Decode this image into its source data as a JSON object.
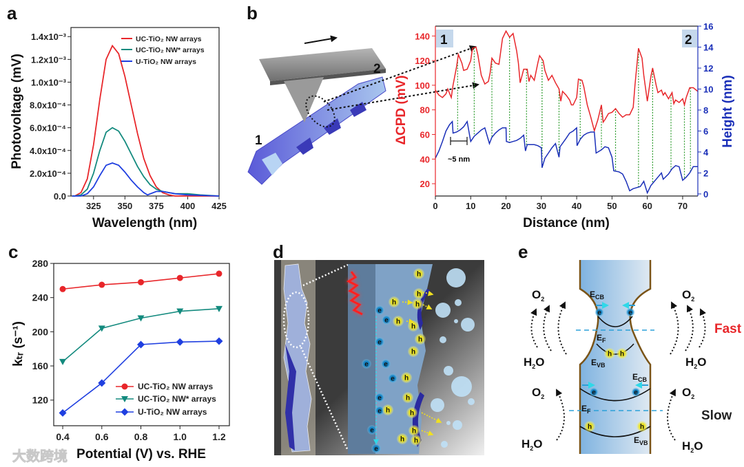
{
  "panels": {
    "a": "a",
    "b": "b",
    "c": "c",
    "d": "d",
    "e": "e"
  },
  "watermark": "大数跨境",
  "chart_data": [
    {
      "id": "a",
      "type": "line",
      "xlabel": "Wavelength (nm)",
      "ylabel": "Photovoltage (mV)",
      "xlim": [
        307,
        425
      ],
      "ylim": [
        0,
        0.00148
      ],
      "xticks": [
        325,
        350,
        375,
        400,
        425
      ],
      "yticks": [
        0,
        0.0002,
        0.0004,
        0.0006,
        0.0008,
        0.001,
        0.0012,
        0.0014
      ],
      "ytick_labels": [
        "0.0",
        "2.0x10⁻⁴",
        "4.0x10⁻⁴",
        "6.0x10⁻⁴",
        "8.0x10⁻⁴",
        "1.0x10⁻³",
        "1.2x10⁻³",
        "1.4x10⁻³"
      ],
      "legend": "top-right",
      "series": [
        {
          "name": "UC-TiO₂ NW arrays",
          "color": "#e8262a",
          "points": [
            [
              308,
              0
            ],
            [
              310,
              0
            ],
            [
              315,
              3e-05
            ],
            [
              320,
              0.00015
            ],
            [
              325,
              0.00045
            ],
            [
              330,
              0.00085
            ],
            [
              335,
              0.0012
            ],
            [
              340,
              0.00132
            ],
            [
              345,
              0.00125
            ],
            [
              350,
              0.00105
            ],
            [
              355,
              0.0008
            ],
            [
              360,
              0.00055
            ],
            [
              365,
              0.00033
            ],
            [
              370,
              0.00018
            ],
            [
              375,
              8e-05
            ],
            [
              380,
              3e-05
            ],
            [
              385,
              1e-05
            ],
            [
              390,
              0
            ],
            [
              400,
              0
            ],
            [
              425,
              0
            ]
          ]
        },
        {
          "name": "UC-TiO₂ NW* arrays",
          "color": "#138a7e",
          "points": [
            [
              308,
              0
            ],
            [
              310,
              0
            ],
            [
              315,
              1e-05
            ],
            [
              320,
              6e-05
            ],
            [
              325,
              0.0002
            ],
            [
              330,
              0.0004
            ],
            [
              335,
              0.00056
            ],
            [
              340,
              0.0006
            ],
            [
              345,
              0.00057
            ],
            [
              350,
              0.00048
            ],
            [
              355,
              0.00037
            ],
            [
              360,
              0.00026
            ],
            [
              365,
              0.00017
            ],
            [
              370,
              0.0001
            ],
            [
              375,
              6e-05
            ],
            [
              380,
              4e-05
            ],
            [
              385,
              3e-05
            ],
            [
              390,
              2e-05
            ],
            [
              400,
              2e-05
            ],
            [
              410,
              1e-05
            ],
            [
              425,
              0
            ]
          ]
        },
        {
          "name": "U-TiO₂ NW arrays",
          "color": "#1f3fe0",
          "points": [
            [
              308,
              0
            ],
            [
              315,
              0
            ],
            [
              320,
              2e-05
            ],
            [
              325,
              8e-05
            ],
            [
              330,
              0.00018
            ],
            [
              335,
              0.00027
            ],
            [
              340,
              0.00029
            ],
            [
              345,
              0.00027
            ],
            [
              350,
              0.00021
            ],
            [
              355,
              0.00014
            ],
            [
              360,
              8e-05
            ],
            [
              365,
              3e-05
            ],
            [
              368,
              1e-05
            ],
            [
              375,
              4e-05
            ],
            [
              380,
              4e-05
            ],
            [
              390,
              2e-05
            ],
            [
              400,
              1e-05
            ],
            [
              425,
              0
            ]
          ]
        }
      ]
    },
    {
      "id": "b",
      "type": "line",
      "xlabel": "Distance (nm)",
      "ylabel": "ΔCPD (mV)",
      "y2label": "Height (nm)",
      "xlim": [
        0,
        74.3
      ],
      "ylim": [
        10,
        148
      ],
      "y2lim": [
        -0.2,
        16
      ],
      "xticks": [
        0,
        10,
        20,
        30,
        40,
        50,
        60,
        70
      ],
      "yticks": [
        20,
        40,
        60,
        80,
        100,
        120,
        140
      ],
      "y2ticks": [
        0,
        2,
        4,
        6,
        8,
        10,
        12,
        14,
        16
      ],
      "corner_labels": [
        "1",
        "2"
      ],
      "scale_label": "~5 nm",
      "marker_x": [
        6.3,
        11,
        16,
        21,
        25.8,
        30.2,
        35,
        41,
        47,
        51,
        57.5,
        61.5,
        66.7,
        70.5,
        72.2
      ],
      "series": [
        {
          "name": "ΔCPD",
          "color": "#e8262a",
          "axis": "left",
          "points": [
            [
              0,
              96
            ],
            [
              1,
              92
            ],
            [
              2,
              90
            ],
            [
              3,
              93
            ],
            [
              3.5,
              97
            ],
            [
              4.5,
              90
            ],
            [
              5,
              100
            ],
            [
              6,
              115
            ],
            [
              6.5,
              125
            ],
            [
              7.5,
              118
            ],
            [
              8,
              112
            ],
            [
              9,
              113
            ],
            [
              10,
              120
            ],
            [
              10.5,
              130
            ],
            [
              11.5,
              131
            ],
            [
              12,
              125
            ],
            [
              13,
              108
            ],
            [
              14,
              101
            ],
            [
              15,
              103
            ],
            [
              15.5,
              110
            ],
            [
              16,
              122
            ],
            [
              17,
              118
            ],
            [
              18,
              117
            ],
            [
              19,
              138
            ],
            [
              20,
              144
            ],
            [
              21,
              139
            ],
            [
              22,
              142
            ],
            [
              23,
              128
            ],
            [
              23.5,
              118
            ],
            [
              24,
              102
            ],
            [
              25,
              113
            ],
            [
              26,
              113
            ],
            [
              26.5,
              103
            ],
            [
              27,
              108
            ],
            [
              28,
              104
            ],
            [
              29,
              118
            ],
            [
              29.5,
              124
            ],
            [
              30.5,
              120
            ],
            [
              31,
              112
            ],
            [
              32,
              104
            ],
            [
              33,
              108
            ],
            [
              34,
              102
            ],
            [
              35,
              97
            ],
            [
              35.5,
              87
            ],
            [
              36,
              95
            ],
            [
              37,
              92
            ],
            [
              38,
              88
            ],
            [
              38.5,
              84
            ],
            [
              39,
              84
            ],
            [
              40,
              90
            ],
            [
              40.5,
              105
            ],
            [
              41.5,
              104
            ],
            [
              42,
              99
            ],
            [
              43,
              84
            ],
            [
              44,
              74
            ],
            [
              45,
              63
            ],
            [
              46,
              72
            ],
            [
              47,
              84
            ],
            [
              47.5,
              70
            ],
            [
              48,
              72
            ],
            [
              49,
              77
            ],
            [
              50,
              78
            ],
            [
              51,
              81
            ],
            [
              52,
              77
            ],
            [
              53,
              74
            ],
            [
              54,
              76
            ],
            [
              55,
              76
            ],
            [
              56,
              82
            ],
            [
              56.5,
              100
            ],
            [
              57.5,
              130
            ],
            [
              58.5,
              122
            ],
            [
              59,
              108
            ],
            [
              60,
              87
            ],
            [
              61,
              107
            ],
            [
              61.5,
              114
            ],
            [
              62.5,
              100
            ],
            [
              63,
              94
            ],
            [
              64,
              96
            ],
            [
              64.5,
              92
            ],
            [
              65,
              94
            ],
            [
              66,
              89
            ],
            [
              67,
              94
            ],
            [
              67.5,
              85
            ],
            [
              68,
              88
            ],
            [
              69,
              86
            ],
            [
              70,
              89
            ],
            [
              70.5,
              84
            ],
            [
              71,
              90
            ],
            [
              72,
              98
            ],
            [
              73,
              98
            ],
            [
              74.3,
              95
            ]
          ]
        },
        {
          "name": "Height",
          "color": "#1a2fb8",
          "axis": "right",
          "points": [
            [
              0,
              3.4
            ],
            [
              1,
              4.1
            ],
            [
              2,
              5.0
            ],
            [
              3,
              6.0
            ],
            [
              4,
              6.6
            ],
            [
              4.8,
              6.9
            ],
            [
              5,
              5.8
            ],
            [
              6,
              5.9
            ],
            [
              7,
              6.1
            ],
            [
              8,
              6.4
            ],
            [
              9,
              6.9
            ],
            [
              10,
              5.0
            ],
            [
              11,
              5.5
            ],
            [
              12,
              5.8
            ],
            [
              13,
              6.1
            ],
            [
              14,
              6.3
            ],
            [
              15.3,
              4.8
            ],
            [
              16,
              5.4
            ],
            [
              17,
              5.8
            ],
            [
              18,
              6.1
            ],
            [
              19,
              6.3
            ],
            [
              20,
              6.3
            ],
            [
              20.1,
              5.0
            ],
            [
              21,
              4.9
            ],
            [
              22,
              5.0
            ],
            [
              23,
              5.1
            ],
            [
              24,
              5.3
            ],
            [
              25,
              5.6
            ],
            [
              25.5,
              4.1
            ],
            [
              26,
              4.7
            ],
            [
              28,
              4.7
            ],
            [
              29,
              4.6
            ],
            [
              30,
              4.4
            ],
            [
              30.2,
              2.5
            ],
            [
              31,
              3.4
            ],
            [
              32,
              3.9
            ],
            [
              33,
              4.4
            ],
            [
              34,
              4.8
            ],
            [
              35,
              3.5
            ],
            [
              35.3,
              4.5
            ],
            [
              37,
              5.3
            ],
            [
              38,
              5.8
            ],
            [
              39,
              6.0
            ],
            [
              40,
              6.3
            ],
            [
              40.1,
              4.6
            ],
            [
              41,
              5.2
            ],
            [
              42,
              5.6
            ],
            [
              43,
              5.8
            ],
            [
              44,
              5.9
            ],
            [
              45,
              5.9
            ],
            [
              45.5,
              3.9
            ],
            [
              47,
              4.2
            ],
            [
              48,
              4.5
            ],
            [
              49,
              4.4
            ],
            [
              50,
              3.5
            ],
            [
              50.5,
              2.2
            ],
            [
              52,
              2.1
            ],
            [
              53,
              1.9
            ],
            [
              54,
              1.2
            ],
            [
              55,
              0.3
            ],
            [
              56,
              0.5
            ],
            [
              57,
              0.6
            ],
            [
              58,
              0.7
            ],
            [
              59,
              1.2
            ],
            [
              60,
              0.1
            ],
            [
              61,
              0.8
            ],
            [
              62,
              1.2
            ],
            [
              63,
              1.6
            ],
            [
              64,
              2.0
            ],
            [
              64.5,
              1.4
            ],
            [
              66,
              1.9
            ],
            [
              67,
              2.4
            ],
            [
              68,
              2.7
            ],
            [
              69,
              2.6
            ],
            [
              70,
              1.3
            ],
            [
              71,
              1.6
            ],
            [
              72,
              2.0
            ],
            [
              73,
              2.6
            ],
            [
              74.3,
              2.6
            ]
          ]
        }
      ]
    },
    {
      "id": "c",
      "type": "line",
      "xlabel": "Potential (V) vs. RHE",
      "ylabel": "kₜᵣ (s⁻¹)",
      "xlim": [
        0.354,
        1.253
      ],
      "ylim": [
        90,
        280
      ],
      "xticks": [
        0.4,
        0.6,
        0.8,
        1.0,
        1.2
      ],
      "xtick_labels": [
        "0.4",
        "0.6",
        "0.8",
        "1.0",
        "1.2"
      ],
      "yticks": [
        120,
        160,
        200,
        240,
        280
      ],
      "legend": "bottom-right",
      "x": [
        0.4,
        0.6,
        0.8,
        1.0,
        1.2
      ],
      "series": [
        {
          "name": "UC-TiO₂ NW arrays",
          "color": "#e8262a",
          "marker": "circle",
          "values": [
            250,
            255,
            258,
            263,
            268
          ]
        },
        {
          "name": "UC-TiO₂ NW* arrays",
          "color": "#138a7e",
          "marker": "triangle-down",
          "values": [
            165,
            204,
            216,
            224,
            227
          ]
        },
        {
          "name": "U-TiO₂ NW arrays",
          "color": "#1f3fe0",
          "marker": "diamond",
          "values": [
            105,
            140,
            185,
            188,
            189
          ]
        }
      ]
    }
  ],
  "diagram_b": {
    "end1": "1",
    "end2": "2"
  },
  "diagram_d": {
    "electron": "e",
    "hole": "h"
  },
  "diagram_e": {
    "o2": "O",
    "h2o_a": "H",
    "h2o_b": "O",
    "sub2": "2",
    "e_letter": "E",
    "cb": "CB",
    "vb": "VB",
    "f": "F",
    "fast": "Fast",
    "slow": "Slow",
    "fast_color": "#e8262a"
  }
}
